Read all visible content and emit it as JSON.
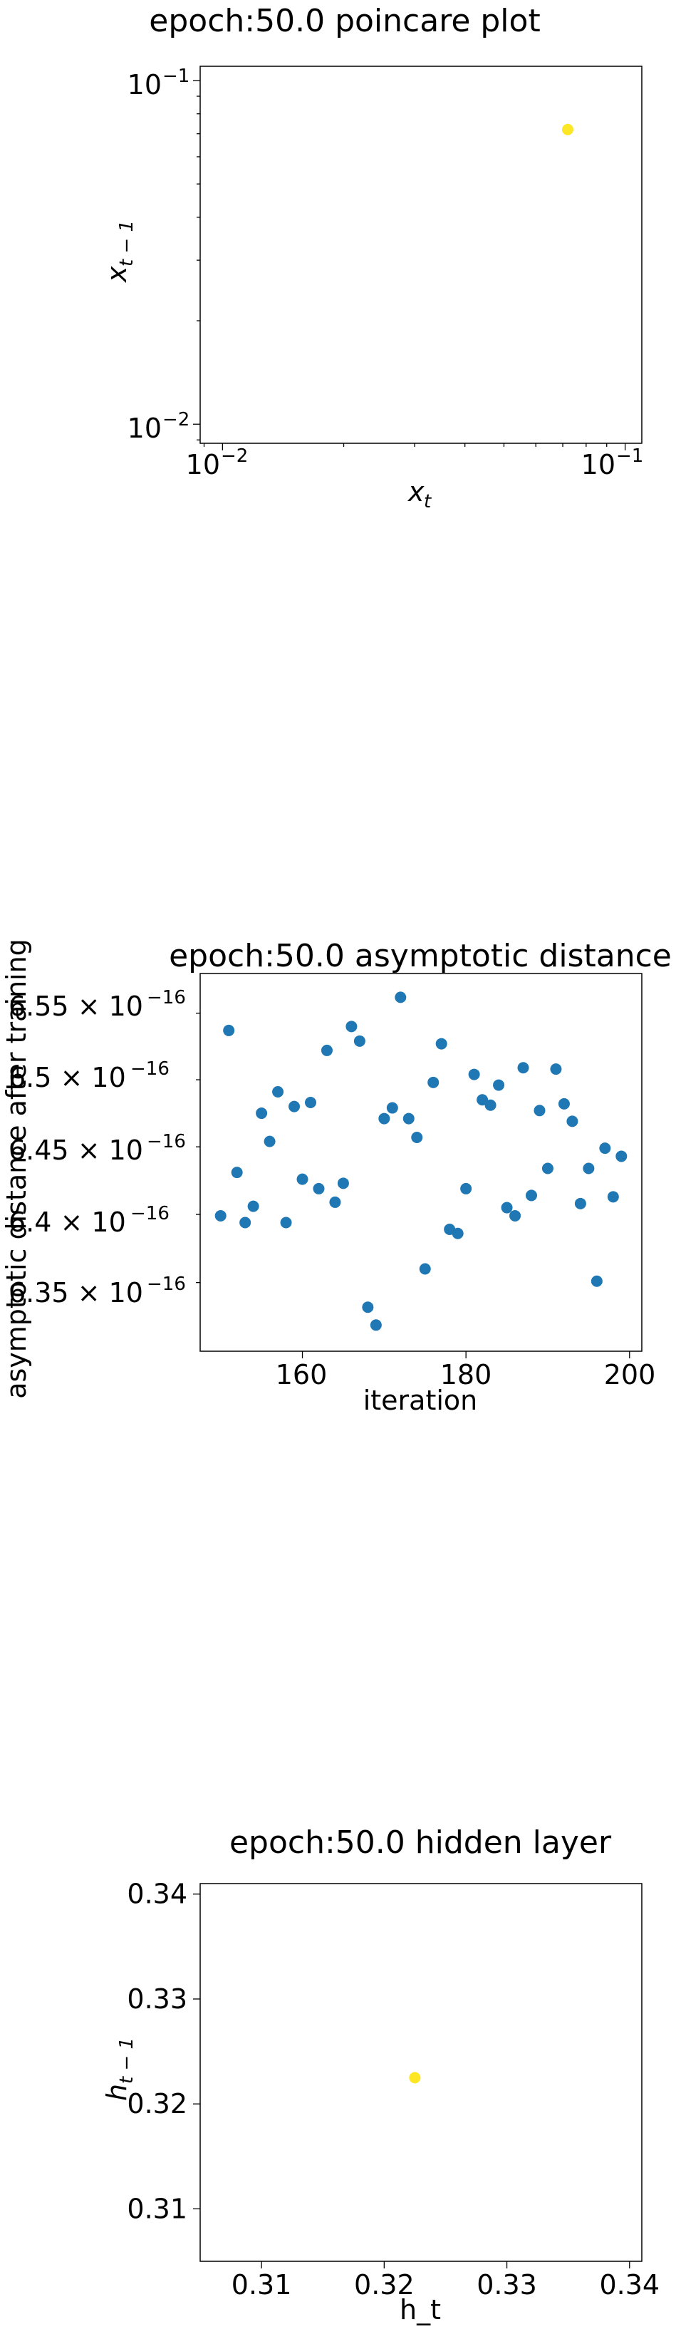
{
  "chart_data": [
    {
      "type": "scatter",
      "title": "epoch:50.0 poincare plot",
      "xlabel": "x_t",
      "ylabel": "x_{t-1}",
      "xscale": "log",
      "yscale": "log",
      "xlim": [
        0.0088,
        0.11
      ],
      "ylim": [
        0.0088,
        0.11
      ],
      "x_ticks": [
        "10^{-2}",
        "10^{-1}"
      ],
      "y_ticks": [
        "10^{-2}",
        "10^{-1}"
      ],
      "marker_color": "#fde725",
      "points": [
        {
          "x": 0.072,
          "y": 0.072
        }
      ],
      "grid": false,
      "legend": "none"
    },
    {
      "type": "scatter",
      "title": "epoch:50.0 asymptotic distance",
      "xlabel": "iteration",
      "ylabel": "asymptotic distance after training",
      "yscale": "log",
      "xlim": [
        147.5,
        201.5
      ],
      "ylim": [
        6.3e-16,
        6.58e-16
      ],
      "x_ticks": [
        "160",
        "180",
        "200"
      ],
      "y_ticks": [
        "6.35 × 10^{-16}",
        "6.4 × 10^{-16}",
        "6.45 × 10^{-16}",
        "6.5 × 10^{-16}",
        "6.55 × 10^{-16}"
      ],
      "marker_color": "#1f77b4",
      "x": [
        150,
        151,
        152,
        153,
        154,
        155,
        156,
        157,
        158,
        159,
        160,
        161,
        162,
        163,
        164,
        165,
        166,
        167,
        168,
        169,
        170,
        171,
        172,
        173,
        174,
        175,
        176,
        177,
        178,
        179,
        180,
        181,
        182,
        183,
        184,
        185,
        186,
        187,
        188,
        189,
        190,
        191,
        192,
        193,
        194,
        195,
        196,
        197,
        198,
        199
      ],
      "values": [
        6.399e-16,
        6.537e-16,
        6.431e-16,
        6.394e-16,
        6.406e-16,
        6.475e-16,
        6.454e-16,
        6.491e-16,
        6.394e-16,
        6.48e-16,
        6.426e-16,
        6.483e-16,
        6.419e-16,
        6.522e-16,
        6.409e-16,
        6.423e-16,
        6.54e-16,
        6.529e-16,
        6.332e-16,
        6.319e-16,
        6.471e-16,
        6.479e-16,
        6.562e-16,
        6.471e-16,
        6.457e-16,
        6.36e-16,
        6.498e-16,
        6.527e-16,
        6.389e-16,
        6.386e-16,
        6.419e-16,
        6.504e-16,
        6.485e-16,
        6.481e-16,
        6.496e-16,
        6.405e-16,
        6.399e-16,
        6.509e-16,
        6.414e-16,
        6.477e-16,
        6.434e-16,
        6.508e-16,
        6.482e-16,
        6.469e-16,
        6.408e-16,
        6.434e-16,
        6.351e-16,
        6.449e-16,
        6.413e-16,
        6.443e-16
      ],
      "grid": false,
      "legend": "none"
    },
    {
      "type": "scatter",
      "title": "epoch:50.0 hidden layer",
      "xlabel": "h_t",
      "ylabel": "h_{t-1}",
      "xlim": [
        0.305,
        0.341
      ],
      "ylim": [
        0.305,
        0.341
      ],
      "x_ticks": [
        "0.31",
        "0.32",
        "0.33",
        "0.34"
      ],
      "y_ticks": [
        "0.31",
        "0.32",
        "0.33",
        "0.34"
      ],
      "marker_color": "#fde725",
      "points": [
        {
          "x": 0.3225,
          "y": 0.3225
        }
      ],
      "grid": false,
      "legend": "none"
    }
  ]
}
